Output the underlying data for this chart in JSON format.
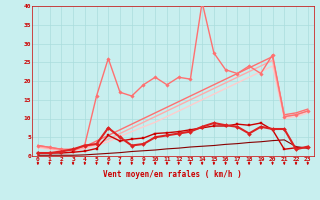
{
  "background_color": "#c8efef",
  "grid_color": "#aadddd",
  "xlabel": "Vent moyen/en rafales ( km/h )",
  "xlabel_color": "#cc0000",
  "xlim": [
    -0.5,
    23.5
  ],
  "ylim": [
    0,
    40
  ],
  "yticks": [
    0,
    5,
    10,
    15,
    20,
    25,
    30,
    35,
    40
  ],
  "xticks": [
    0,
    1,
    2,
    3,
    4,
    5,
    6,
    7,
    8,
    9,
    10,
    11,
    12,
    13,
    14,
    15,
    16,
    17,
    18,
    19,
    20,
    21,
    22,
    23
  ],
  "tick_color": "#cc0000",
  "lines": [
    {
      "x": [
        0,
        1,
        2,
        3,
        4,
        5,
        6,
        7,
        8,
        9,
        10,
        11,
        12,
        13,
        14,
        15,
        16,
        17,
        18,
        19,
        20,
        21,
        22,
        23
      ],
      "y": [
        0.2,
        0.2,
        0.2,
        0.2,
        0.3,
        0.5,
        0.7,
        0.9,
        1.2,
        1.4,
        1.6,
        1.9,
        2.1,
        2.4,
        2.6,
        2.8,
        3.1,
        3.3,
        3.6,
        3.8,
        4.1,
        4.3,
        2.5,
        2.1
      ],
      "color": "#880000",
      "linewidth": 0.8,
      "marker": null,
      "zorder": 4
    },
    {
      "x": [
        0,
        1,
        2,
        3,
        4,
        5,
        6,
        7,
        8,
        9,
        10,
        11,
        12,
        13,
        14,
        15,
        16,
        17,
        18,
        19,
        20,
        21,
        22,
        23
      ],
      "y": [
        0.8,
        0.8,
        0.8,
        1.0,
        1.3,
        2.0,
        5.5,
        4.0,
        4.5,
        4.8,
        6.0,
        6.2,
        6.5,
        7.0,
        7.5,
        8.0,
        8.0,
        8.5,
        8.2,
        8.8,
        7.0,
        1.8,
        2.2,
        2.2
      ],
      "color": "#cc0000",
      "linewidth": 1.0,
      "marker": "s",
      "markersize": 1.8,
      "zorder": 5
    },
    {
      "x": [
        0,
        1,
        2,
        3,
        4,
        5,
        6,
        7,
        8,
        9,
        10,
        11,
        12,
        13,
        14,
        15,
        16,
        17,
        18,
        19,
        20,
        21,
        22,
        23
      ],
      "y": [
        0.8,
        0.8,
        1.2,
        1.8,
        2.8,
        3.2,
        7.5,
        5.0,
        2.8,
        3.2,
        5.0,
        5.5,
        6.0,
        6.5,
        7.8,
        8.8,
        8.2,
        7.8,
        6.0,
        7.8,
        7.2,
        7.2,
        1.8,
        2.5
      ],
      "color": "#dd2222",
      "linewidth": 1.5,
      "marker": "D",
      "markersize": 2.0,
      "zorder": 6
    },
    {
      "x": [
        0,
        1,
        2,
        3,
        4,
        5,
        6,
        7,
        8,
        9,
        10,
        11,
        12,
        13,
        14,
        15,
        16,
        17,
        18,
        19,
        20,
        21,
        22,
        23
      ],
      "y": [
        2.8,
        2.3,
        1.8,
        1.3,
        3.0,
        16.0,
        26.0,
        17.0,
        16.0,
        19.0,
        21.0,
        19.0,
        21.0,
        20.5,
        41.0,
        27.5,
        23.0,
        22.0,
        24.0,
        22.0,
        27.0,
        10.5,
        11.0,
        12.0
      ],
      "color": "#ff7070",
      "linewidth": 1.0,
      "marker": "D",
      "markersize": 1.8,
      "zorder": 3
    },
    {
      "x": [
        0,
        1,
        2,
        3,
        4,
        5,
        6,
        7,
        8,
        9,
        10,
        11,
        12,
        13,
        14,
        15,
        16,
        17,
        18,
        19,
        20,
        21,
        22,
        23
      ],
      "y": [
        2.8,
        2.3,
        1.8,
        1.8,
        2.5,
        4.0,
        5.5,
        7.0,
        8.5,
        10.0,
        11.5,
        13.0,
        14.5,
        16.0,
        17.5,
        19.0,
        20.5,
        22.0,
        23.5,
        25.0,
        26.5,
        11.0,
        11.5,
        12.5
      ],
      "color": "#ff7070",
      "linewidth": 1.0,
      "marker": null,
      "zorder": 2
    },
    {
      "x": [
        0,
        1,
        2,
        3,
        4,
        5,
        6,
        7,
        8,
        9,
        10,
        11,
        12,
        13,
        14,
        15,
        16,
        17,
        18,
        19,
        20,
        21,
        22,
        23
      ],
      "y": [
        2.5,
        2.0,
        1.5,
        1.5,
        2.2,
        3.2,
        4.5,
        6.0,
        7.5,
        9.0,
        10.5,
        12.0,
        13.5,
        15.0,
        16.5,
        18.0,
        19.5,
        21.0,
        22.5,
        24.0,
        25.5,
        10.5,
        11.0,
        12.0
      ],
      "color": "#ffaaaa",
      "linewidth": 1.0,
      "marker": null,
      "zorder": 2
    },
    {
      "x": [
        0,
        1,
        2,
        3,
        4,
        5,
        6,
        7,
        8,
        9,
        10,
        11,
        12,
        13,
        14,
        15,
        16,
        17,
        18,
        19,
        20,
        21,
        22,
        23
      ],
      "y": [
        2.2,
        1.8,
        1.5,
        1.5,
        2.0,
        2.8,
        3.8,
        5.2,
        6.5,
        7.8,
        9.0,
        10.5,
        12.0,
        13.5,
        15.0,
        16.5,
        18.0,
        19.5,
        21.0,
        22.5,
        24.0,
        10.0,
        10.5,
        11.5
      ],
      "color": "#ffcccc",
      "linewidth": 1.0,
      "marker": null,
      "zorder": 1
    }
  ]
}
